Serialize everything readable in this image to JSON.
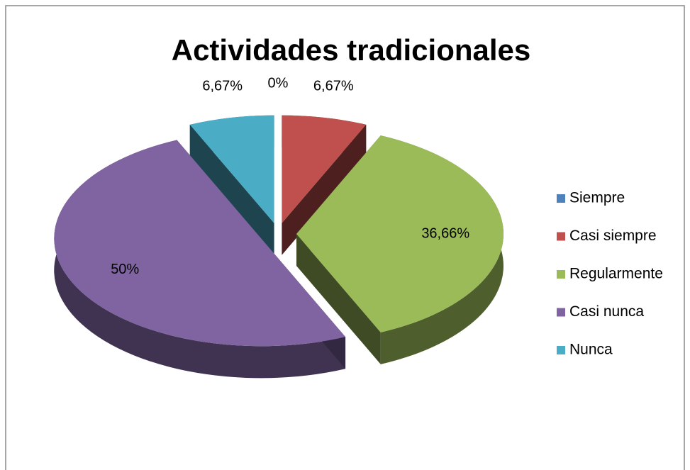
{
  "chart_data": {
    "type": "pie",
    "title": "Actividades tradicionales",
    "categories": [
      "Siempre",
      "Casi siempre",
      "Regularmente",
      "Casi nunca",
      "Nunca"
    ],
    "values": [
      0,
      6.67,
      36.66,
      50,
      6.67
    ],
    "value_labels": [
      "0%",
      "6,67%",
      "36,66%",
      "50%",
      "6,67%"
    ],
    "colors": [
      "#4f81bd",
      "#c0504d",
      "#9bbb59",
      "#8064a2",
      "#4bacc6"
    ],
    "legend": "right"
  }
}
